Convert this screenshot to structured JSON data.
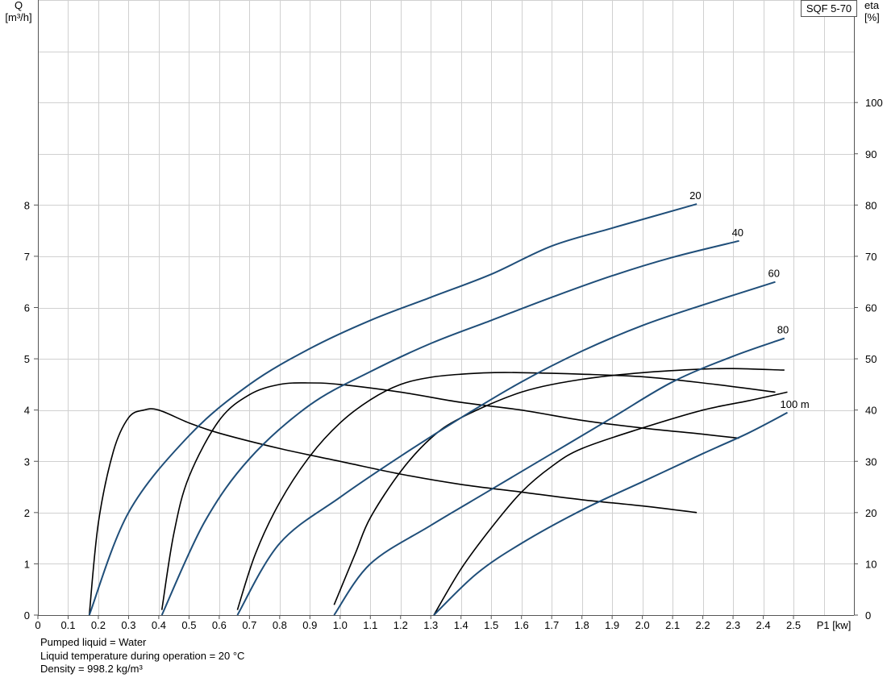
{
  "model": "SQF 5-70",
  "notes": [
    "Pumped liquid = Water",
    "Liquid temperature during operation = 20 °C",
    "Density = 998.2 kg/m³"
  ],
  "chart_data": {
    "type": "line",
    "y_left_label": [
      "Q",
      "[m³/h]"
    ],
    "y_right_label": [
      "eta",
      "[%]"
    ],
    "x_label": "P1 [kw]",
    "xlim": [
      0,
      2.7
    ],
    "ylim_left": [
      0,
      12
    ],
    "ylim_right": [
      0,
      120
    ],
    "x_ticks": [
      0,
      0.1,
      0.2,
      0.3,
      0.4,
      0.5,
      0.6,
      0.7,
      0.8,
      0.9,
      1.0,
      1.1,
      1.2,
      1.3,
      1.4,
      1.5,
      1.6,
      1.7,
      1.8,
      1.9,
      2.0,
      2.1,
      2.2,
      2.3,
      2.4,
      2.5
    ],
    "x_tick_labels": [
      "0",
      "0.1",
      "0.2",
      "0.3",
      "0.4",
      "0.5",
      "0.6",
      "0.7",
      "0.8",
      "0.9",
      "1.0",
      "1.1",
      "1.2",
      "1.3",
      "1.4",
      "1.5",
      "1.6",
      "1.7",
      "1.8",
      "1.9",
      "2.0",
      "2.1",
      "2.2",
      "2.3",
      "2.4",
      "2.5"
    ],
    "y_left_ticks": [
      0,
      1,
      2,
      3,
      4,
      5,
      6,
      7,
      8
    ],
    "y_right_ticks": [
      0,
      10,
      20,
      30,
      40,
      50,
      60,
      70,
      80,
      90,
      100
    ],
    "grid": true,
    "flow_series": [
      {
        "name": "20",
        "label": "20",
        "points": [
          [
            0.17,
            0
          ],
          [
            0.3,
            2.0
          ],
          [
            0.5,
            3.5
          ],
          [
            0.7,
            4.5
          ],
          [
            0.9,
            5.2
          ],
          [
            1.1,
            5.75
          ],
          [
            1.3,
            6.2
          ],
          [
            1.5,
            6.65
          ],
          [
            1.7,
            7.2
          ],
          [
            1.9,
            7.55
          ],
          [
            2.18,
            8.02
          ]
        ]
      },
      {
        "name": "40",
        "label": "40",
        "points": [
          [
            0.41,
            0
          ],
          [
            0.55,
            1.8
          ],
          [
            0.7,
            3.05
          ],
          [
            0.9,
            4.1
          ],
          [
            1.1,
            4.75
          ],
          [
            1.3,
            5.3
          ],
          [
            1.5,
            5.75
          ],
          [
            1.7,
            6.2
          ],
          [
            1.9,
            6.62
          ],
          [
            2.1,
            6.98
          ],
          [
            2.32,
            7.3
          ]
        ]
      },
      {
        "name": "60",
        "label": "60",
        "points": [
          [
            0.66,
            0
          ],
          [
            0.8,
            1.4
          ],
          [
            1.0,
            2.3
          ],
          [
            1.2,
            3.1
          ],
          [
            1.4,
            3.85
          ],
          [
            1.6,
            4.55
          ],
          [
            1.8,
            5.15
          ],
          [
            2.0,
            5.65
          ],
          [
            2.2,
            6.05
          ],
          [
            2.44,
            6.5
          ]
        ]
      },
      {
        "name": "80",
        "label": "80",
        "points": [
          [
            0.98,
            0
          ],
          [
            1.1,
            1.0
          ],
          [
            1.3,
            1.75
          ],
          [
            1.5,
            2.45
          ],
          [
            1.7,
            3.15
          ],
          [
            1.9,
            3.85
          ],
          [
            2.1,
            4.55
          ],
          [
            2.3,
            5.05
          ],
          [
            2.47,
            5.4
          ]
        ]
      },
      {
        "name": "100 m",
        "label": "100 m",
        "points": [
          [
            1.31,
            0
          ],
          [
            1.45,
            0.8
          ],
          [
            1.6,
            1.4
          ],
          [
            1.8,
            2.05
          ],
          [
            2.0,
            2.6
          ],
          [
            2.2,
            3.15
          ],
          [
            2.35,
            3.55
          ],
          [
            2.48,
            3.95
          ]
        ]
      }
    ],
    "efficiency_series": [
      {
        "name": "eta-20",
        "points": [
          [
            0.17,
            0
          ],
          [
            0.2,
            18
          ],
          [
            0.25,
            32
          ],
          [
            0.3,
            38.5
          ],
          [
            0.35,
            40
          ],
          [
            0.4,
            40
          ],
          [
            0.5,
            37.5
          ],
          [
            0.6,
            35.5
          ],
          [
            0.8,
            32.5
          ],
          [
            1.0,
            30
          ],
          [
            1.2,
            27.5
          ],
          [
            1.4,
            25.5
          ],
          [
            1.6,
            24
          ],
          [
            1.8,
            22.5
          ],
          [
            2.0,
            21.3
          ],
          [
            2.18,
            20
          ]
        ]
      },
      {
        "name": "eta-40",
        "points": [
          [
            0.41,
            1
          ],
          [
            0.45,
            16
          ],
          [
            0.5,
            27
          ],
          [
            0.6,
            38
          ],
          [
            0.7,
            43
          ],
          [
            0.8,
            45
          ],
          [
            0.9,
            45.3
          ],
          [
            1.0,
            45
          ],
          [
            1.2,
            43.5
          ],
          [
            1.4,
            41.5
          ],
          [
            1.6,
            40
          ],
          [
            1.8,
            38
          ],
          [
            2.0,
            36.5
          ],
          [
            2.2,
            35.3
          ],
          [
            2.32,
            34.5
          ]
        ]
      },
      {
        "name": "eta-60",
        "points": [
          [
            0.66,
            1
          ],
          [
            0.72,
            12
          ],
          [
            0.8,
            22
          ],
          [
            0.9,
            31
          ],
          [
            1.0,
            37.5
          ],
          [
            1.1,
            42
          ],
          [
            1.2,
            45
          ],
          [
            1.3,
            46.4
          ],
          [
            1.4,
            47
          ],
          [
            1.5,
            47.3
          ],
          [
            1.6,
            47.3
          ],
          [
            1.8,
            47
          ],
          [
            2.0,
            46.5
          ],
          [
            2.2,
            45.3
          ],
          [
            2.44,
            43.5
          ]
        ]
      },
      {
        "name": "eta-80",
        "points": [
          [
            0.98,
            2
          ],
          [
            1.05,
            12
          ],
          [
            1.1,
            19
          ],
          [
            1.2,
            28
          ],
          [
            1.3,
            34.5
          ],
          [
            1.4,
            38.5
          ],
          [
            1.6,
            43.5
          ],
          [
            1.8,
            46
          ],
          [
            2.0,
            47.3
          ],
          [
            2.2,
            48
          ],
          [
            2.3,
            48.1
          ],
          [
            2.47,
            47.8
          ]
        ]
      },
      {
        "name": "eta-100",
        "points": [
          [
            1.31,
            0
          ],
          [
            1.4,
            9
          ],
          [
            1.5,
            17
          ],
          [
            1.6,
            24
          ],
          [
            1.7,
            29
          ],
          [
            1.8,
            32.5
          ],
          [
            2.0,
            36.5
          ],
          [
            2.2,
            40
          ],
          [
            2.35,
            41.8
          ],
          [
            2.48,
            43.5
          ]
        ]
      }
    ]
  }
}
